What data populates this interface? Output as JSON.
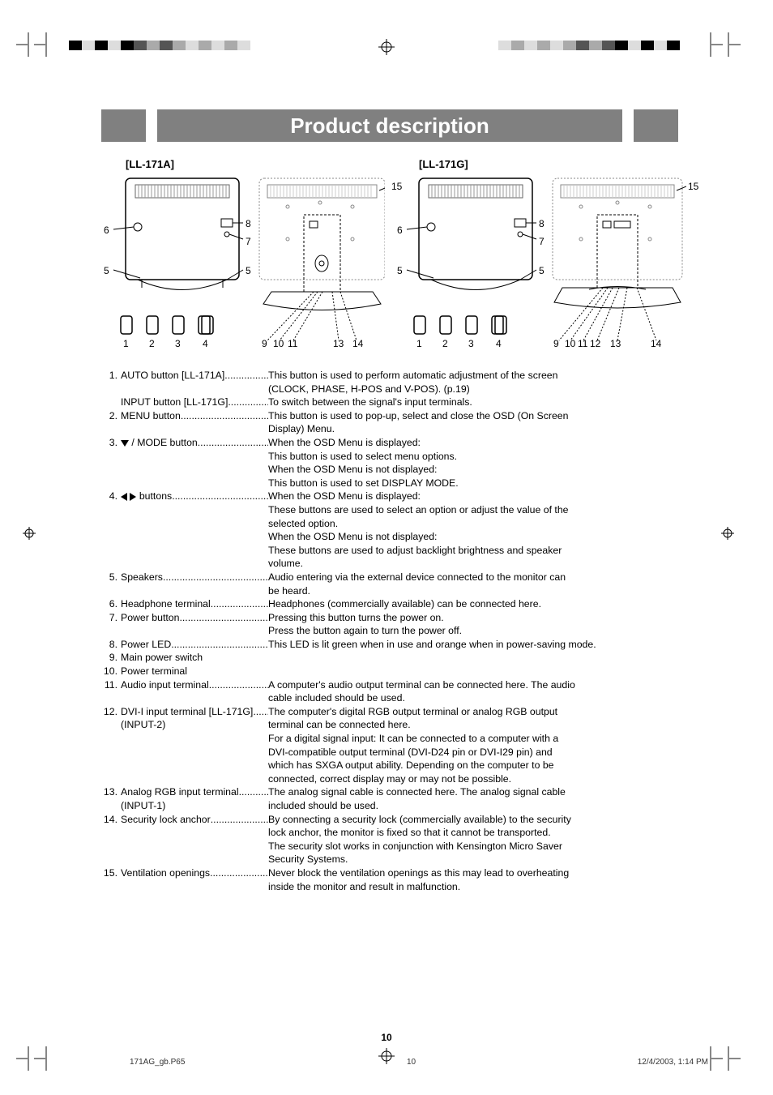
{
  "title": "Product description",
  "page_number": "10",
  "footer_file": "171AG_gb.P65",
  "footer_page": "10",
  "footer_date": "12/4/2003, 1:14 PM",
  "models": {
    "a": "[LL-171A]",
    "g": "[LL-171G]"
  },
  "diagram_numbers": {
    "left_back": [
      "6",
      "5",
      "8",
      "7",
      "5"
    ],
    "left_front": [
      "1",
      "2",
      "3",
      "4"
    ],
    "right_stand_a": [
      "15",
      "9",
      "10",
      "11",
      "13",
      "14"
    ],
    "right_stand_g": [
      "15",
      "9",
      "10",
      "11",
      "12",
      "13",
      "14"
    ]
  },
  "colors": {
    "banner_bg": "#808080",
    "banner_text": "#ffffff",
    "text": "#000000",
    "page_bg": "#ffffff"
  },
  "items": [
    {
      "n": "1.",
      "label": "AUTO button [LL-171A]",
      "desc": "This button is used to perform automatic adjustment of the screen",
      "cont": [
        "(CLOCK, PHASE, H-POS and V-POS). (p.19)"
      ]
    },
    {
      "n": "",
      "label": "INPUT button [LL-171G]",
      "desc": "To switch between the signal's input terminals.",
      "cont": []
    },
    {
      "n": "2.",
      "label": "MENU button",
      "desc": "This button is used to pop-up, select and close the OSD (On Screen",
      "cont": [
        "Display) Menu."
      ]
    },
    {
      "n": "3.",
      "label": "▼ / MODE button",
      "desc": "When the OSD Menu is displayed:",
      "cont": [
        "This button is used to select menu options.",
        "When the OSD Menu is not displayed:",
        "This button is used to set DISPLAY MODE."
      ],
      "icon": "tri-down"
    },
    {
      "n": "4.",
      "label": "◀ ▶ buttons",
      "desc": "When the OSD Menu is displayed:",
      "cont": [
        "These buttons are used to select an option or adjust the value of the",
        "selected option.",
        "When the OSD Menu is not displayed:",
        "These buttons are used to adjust backlight brightness and speaker",
        "volume."
      ],
      "icon": "tri-lr"
    },
    {
      "n": "5.",
      "label": "Speakers",
      "desc": "Audio entering via the external device connected to the monitor can",
      "cont": [
        "be heard."
      ]
    },
    {
      "n": "6.",
      "label": "Headphone terminal",
      "desc": "Headphones (commercially available) can be connected here.",
      "cont": []
    },
    {
      "n": "7.",
      "label": "Power button",
      "desc": "Pressing this button turns the power on.",
      "cont": [
        "Press the button again to turn the power off."
      ]
    },
    {
      "n": "8.",
      "label": "Power LED",
      "desc": "This LED is lit green when in use and orange when in power-saving mode.",
      "cont": []
    },
    {
      "n": "9.",
      "label": "Main power switch",
      "desc": "",
      "cont": [],
      "nodots": true
    },
    {
      "n": "10.",
      "label": "Power terminal",
      "desc": "",
      "cont": [],
      "nodots": true
    },
    {
      "n": "11.",
      "label": "Audio input terminal",
      "desc": "A computer's audio output terminal can be connected here. The audio",
      "cont": [
        "cable included should be used."
      ]
    },
    {
      "n": "12.",
      "label": "DVI-I input terminal [LL-171G]",
      "desc": "The computer's digital RGB output terminal or analog RGB output",
      "cont": [
        "terminal can be connected here.",
        "For a digital signal input: It can be connected to a computer with a",
        "DVI-compatible output terminal (DVI-D24 pin or DVI-I29 pin) and",
        "which has SXGA output ability. Depending on the computer to be",
        "connected, correct display may or may not be possible."
      ],
      "sub": "(INPUT-2)"
    },
    {
      "n": "13.",
      "label": "Analog RGB input terminal",
      "desc": "The analog signal cable is connected here. The analog signal cable",
      "cont": [
        "included should be used."
      ],
      "sub": "(INPUT-1)"
    },
    {
      "n": "14.",
      "label": "Security lock anchor",
      "desc": "By connecting a security lock (commercially available) to the security",
      "cont": [
        "lock anchor, the monitor is fixed so that it cannot be transported.",
        "The security slot works in conjunction with Kensington Micro Saver",
        "Security Systems."
      ]
    },
    {
      "n": "15.",
      "label": "Ventilation openings",
      "desc": "Never block the ventilation openings as this may lead to overheating",
      "cont": [
        "inside the monitor and result in malfunction."
      ]
    }
  ]
}
